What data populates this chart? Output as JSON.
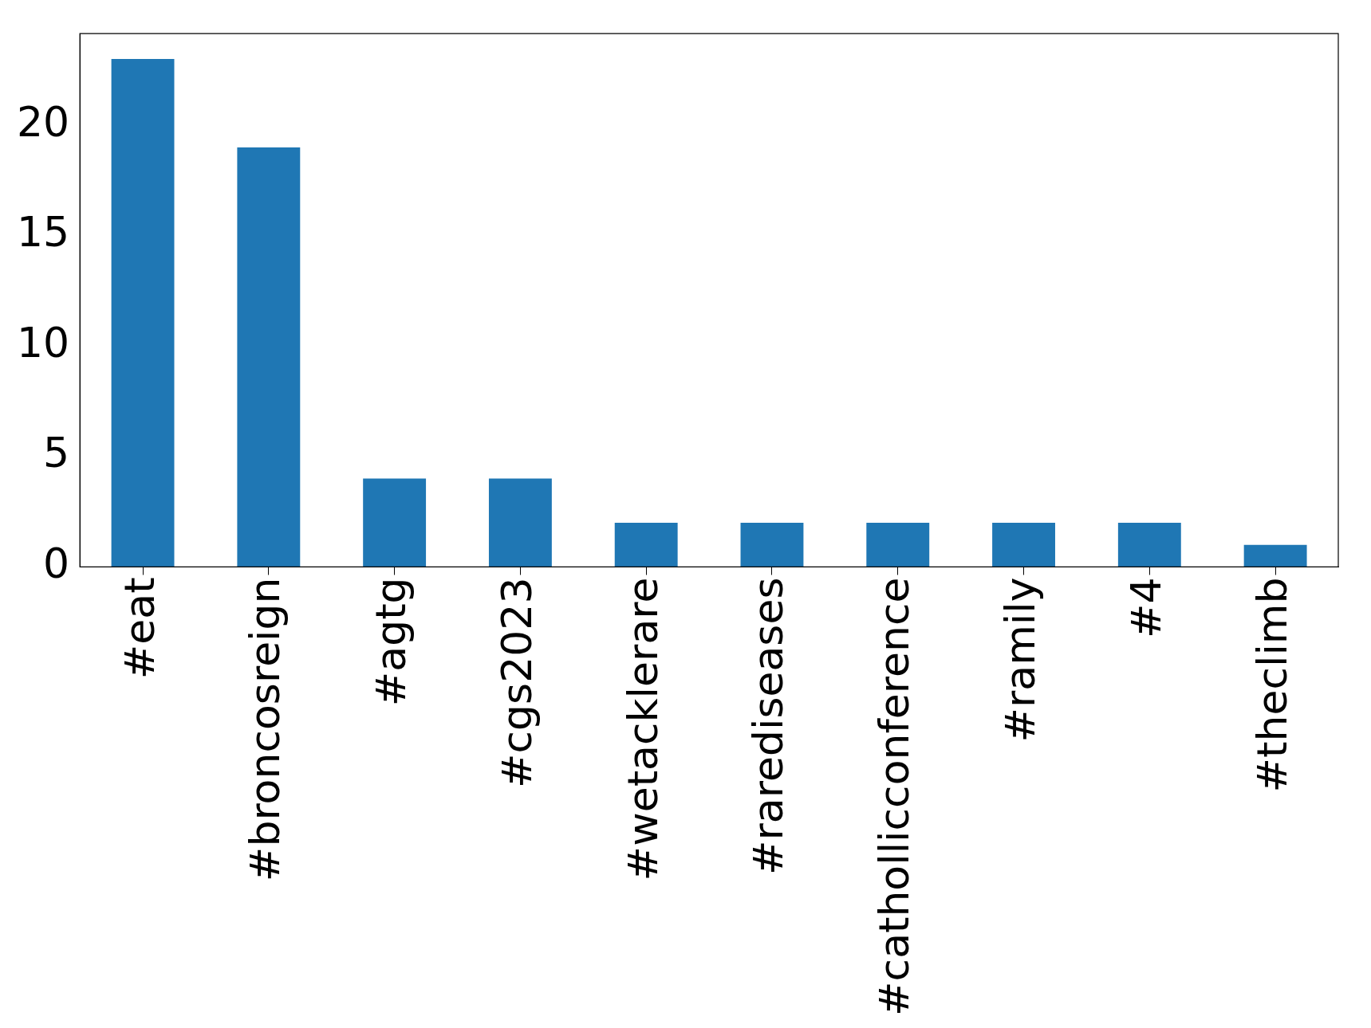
{
  "chart_data": {
    "type": "bar",
    "categories": [
      "#eat",
      "#broncosreign",
      "#agtg",
      "#cgs2023",
      "#wetacklerare",
      "#rarediseases",
      "#cathollicconference",
      "#ramily",
      "#4",
      "#theclimb"
    ],
    "values": [
      23,
      19,
      4,
      4,
      2,
      2,
      2,
      2,
      2,
      1
    ],
    "color": "#1f77b4",
    "ylim": [
      0,
      24.15
    ],
    "yticks": [
      0,
      5,
      10,
      15,
      20
    ],
    "grid": false,
    "legend": false
  }
}
